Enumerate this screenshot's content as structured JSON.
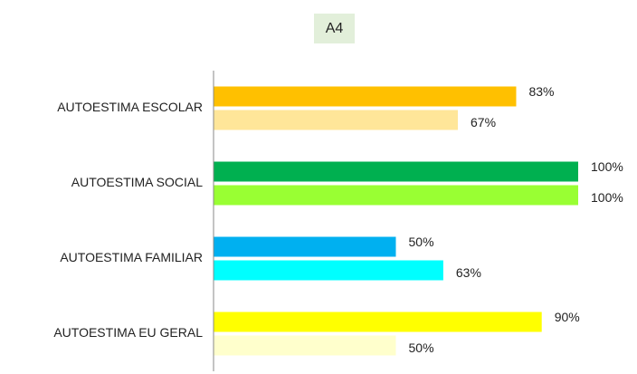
{
  "chart_data": {
    "type": "hbar",
    "title": "A4",
    "categories": [
      "AUTOESTIMA ESCOLAR",
      "AUTOESTIMA SOCIAL",
      "AUTOESTIMA FAMILIAR",
      "AUTOESTIMA EU GERAL"
    ],
    "series": [
      {
        "colors": [
          "#FFC000",
          "#00B050",
          "#00B0F0",
          "#FFFF00"
        ],
        "values": [
          83,
          100,
          50,
          90
        ],
        "value_labels": [
          "83%",
          "100%",
          "50%",
          "90%"
        ]
      },
      {
        "colors": [
          "#FFE699",
          "#99FF33",
          "#00FFFF",
          "#FFFFCC"
        ],
        "values": [
          67,
          100,
          63,
          50
        ],
        "value_labels": [
          "67%",
          "100%",
          "63%",
          "50%"
        ]
      }
    ],
    "xlim": [
      0,
      100
    ]
  }
}
